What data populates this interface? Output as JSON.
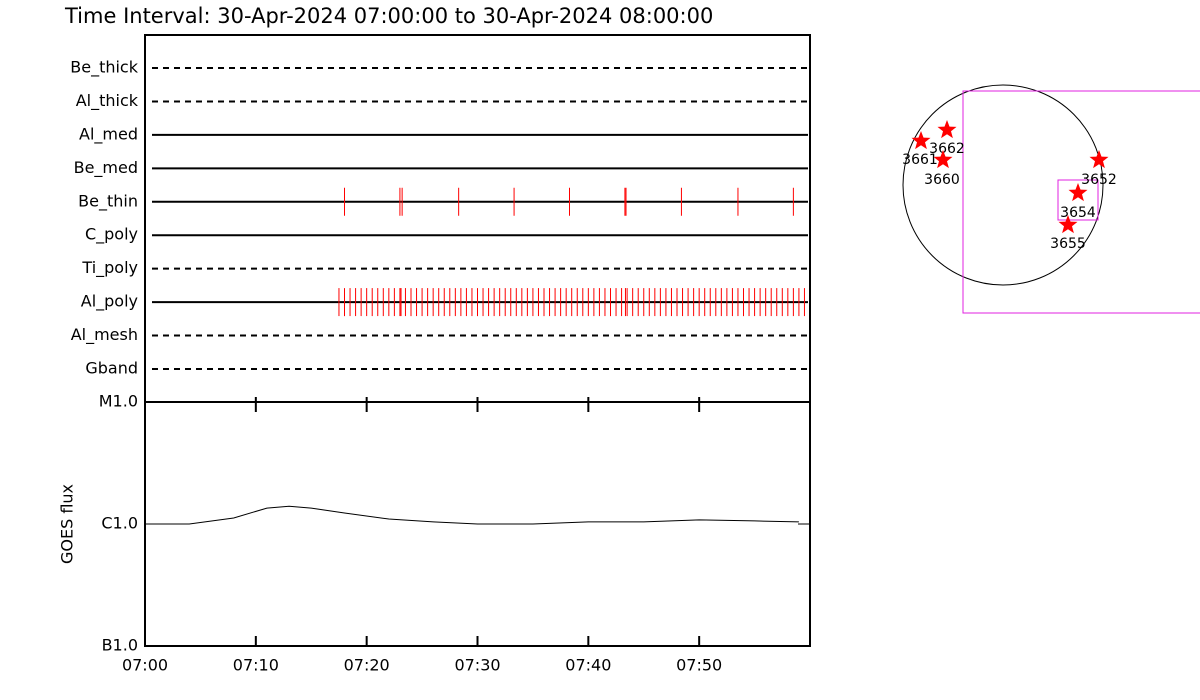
{
  "title": "Time Interval: 30-Apr-2024 07:00:00 to 30-Apr-2024 08:00:00",
  "chart_data": [
    {
      "type": "timeline",
      "xlim": [
        0,
        60
      ],
      "color": "#ff0000",
      "rows": [
        {
          "name": "Be_thick",
          "style": "dashed",
          "events": []
        },
        {
          "name": "Al_thick",
          "style": "dashed",
          "events": []
        },
        {
          "name": "Al_med",
          "style": "solid",
          "events": []
        },
        {
          "name": "Be_med",
          "style": "solid",
          "events": []
        },
        {
          "name": "Be_thin",
          "style": "solid",
          "events": [
            18,
            23,
            23.2,
            28.3,
            33.3,
            38.3,
            43.3,
            43.4,
            48.4,
            53.5,
            58.5
          ]
        },
        {
          "name": "C_poly",
          "style": "solid",
          "events": []
        },
        {
          "name": "Ti_poly",
          "style": "dashed",
          "events": []
        },
        {
          "name": "Al_poly",
          "style": "solid",
          "events": [
            17.5,
            18,
            18.5,
            19,
            19.5,
            20,
            20.5,
            21,
            21.5,
            22,
            22.5,
            23,
            23.1,
            23.5,
            24,
            24.5,
            25,
            25.5,
            26,
            26.5,
            27,
            27.5,
            28,
            28.5,
            29,
            29.5,
            30,
            30.5,
            31,
            31.5,
            32,
            32.5,
            33,
            33.5,
            34,
            34.5,
            35,
            35.5,
            36,
            36.5,
            37,
            37.5,
            38,
            38.5,
            39,
            39.5,
            40,
            40.5,
            41,
            41.5,
            42,
            42.5,
            43,
            43.35,
            43.5,
            44,
            44.5,
            45,
            45.5,
            46,
            46.5,
            47,
            47.5,
            48,
            48.5,
            49,
            49.5,
            50,
            50.5,
            51,
            51.5,
            52,
            52.5,
            53,
            53.5,
            54,
            54.5,
            55,
            55.5,
            56,
            56.5,
            57,
            57.5,
            58,
            58.5,
            59,
            59.5
          ]
        },
        {
          "name": "Al_mesh",
          "style": "dashed",
          "events": []
        },
        {
          "name": "Gband",
          "style": "dashed",
          "events": []
        }
      ]
    },
    {
      "type": "line",
      "ylabel": "GOES flux",
      "color": "#000000",
      "log_y": true,
      "x": [
        0,
        4,
        8,
        11,
        13,
        15,
        18,
        22,
        26,
        30,
        35,
        40,
        45,
        50,
        55,
        59
      ],
      "values": [
        1e-06,
        1e-06,
        1.12e-06,
        1.35e-06,
        1.4e-06,
        1.35e-06,
        1.23e-06,
        1.1e-06,
        1.04e-06,
        1e-06,
        1e-06,
        1.04e-06,
        1.04e-06,
        1.08e-06,
        1.06e-06,
        1.04e-06
      ],
      "xlim": [
        0,
        60
      ],
      "xticks": [
        {
          "value": 0,
          "label": "07:00"
        },
        {
          "value": 10,
          "label": "07:10"
        },
        {
          "value": 20,
          "label": "07:20"
        },
        {
          "value": 30,
          "label": "07:30"
        },
        {
          "value": 40,
          "label": "07:40"
        },
        {
          "value": 50,
          "label": "07:50"
        }
      ],
      "ylim": [
        1e-07,
        1e-05
      ],
      "yticks": [
        {
          "value": 1e-07,
          "label": "B1.0"
        },
        {
          "value": 1e-06,
          "label": "C1.0"
        },
        {
          "value": 1e-05,
          "label": "M1.0"
        }
      ]
    }
  ],
  "map": {
    "regions": [
      "3661",
      "3662",
      "3660",
      "3652",
      "3654",
      "3655"
    ]
  }
}
